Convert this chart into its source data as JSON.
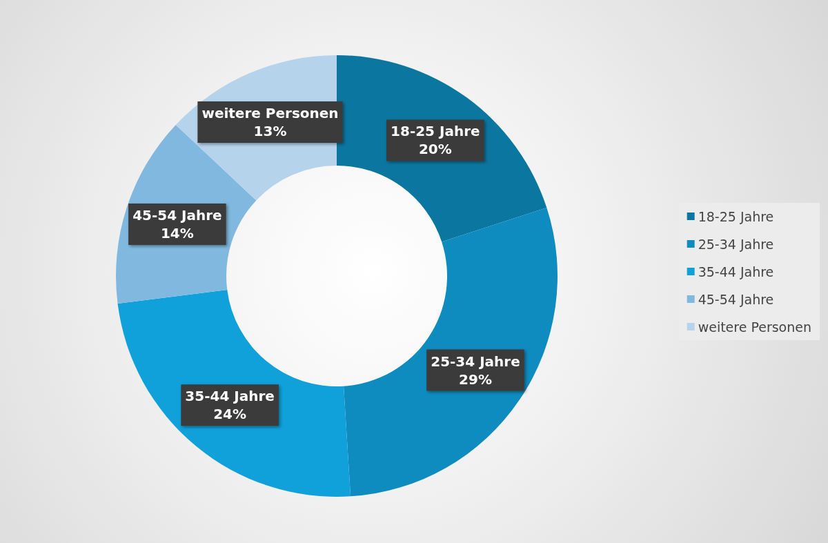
{
  "chart_data": {
    "type": "donut",
    "categories": [
      "18-25 Jahre",
      "25-34 Jahre",
      "35-44 Jahre",
      "45-54 Jahre",
      "weitere Personen"
    ],
    "values": [
      20,
      29,
      24,
      14,
      13
    ],
    "value_labels": [
      "20%",
      "29%",
      "24%",
      "14%",
      "13%"
    ],
    "colors": [
      "#0b76a0",
      "#0e8bbf",
      "#10a0da",
      "#80b8e0",
      "#b6d3ec"
    ],
    "legend": "right"
  }
}
